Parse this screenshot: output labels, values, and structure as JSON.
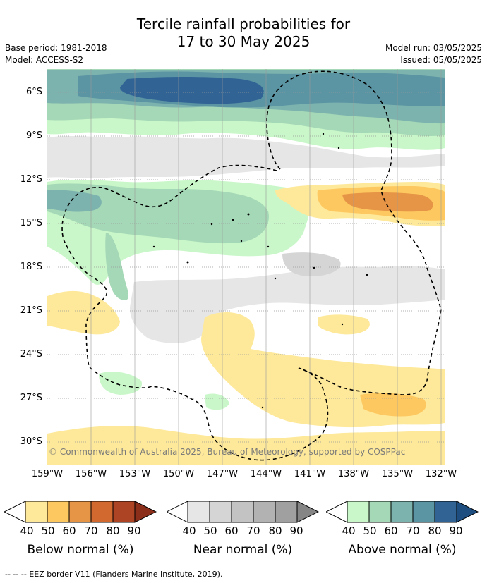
{
  "title_line1": "Tercile rainfall probabilities for",
  "title_line2": "17 to 30 May 2025",
  "base_period": "Base period: 1981-2018",
  "model": "Model: ACCESS-S2",
  "model_run": "Model run: 03/05/2025",
  "issued": "Issued: 05/05/2025",
  "credit": "© Commonwealth of Australia 2025, Bureau of Meteorology, supported by COSPPac",
  "footer": "--  --  -- EEZ border V11 (Flanders Marine Institute, 2019).",
  "lat_labels": [
    "6°S",
    "9°S",
    "12°S",
    "15°S",
    "18°S",
    "21°S",
    "24°S",
    "27°S",
    "30°S"
  ],
  "lon_labels": [
    "159°W",
    "156°W",
    "153°W",
    "150°W",
    "147°W",
    "144°W",
    "141°W",
    "138°W",
    "135°W",
    "132°W"
  ],
  "colorbars": [
    {
      "title": "Below normal (%)",
      "ticks": [
        "40",
        "50",
        "60",
        "70",
        "80",
        "90"
      ],
      "colors": [
        "#fee99a",
        "#fdc860",
        "#e69446",
        "#d2692f",
        "#ad4524",
        "#8c2f1a"
      ],
      "under": "#ffffff"
    },
    {
      "title": "Near normal (%)",
      "ticks": [
        "40",
        "50",
        "60",
        "70",
        "80",
        "90"
      ],
      "colors": [
        "#e6e6e6",
        "#d5d5d5",
        "#c3c3c3",
        "#b2b2b2",
        "#a0a0a0",
        "#858585"
      ],
      "under": "#ffffff"
    },
    {
      "title": "Above normal (%)",
      "ticks": [
        "40",
        "50",
        "60",
        "70",
        "80",
        "90"
      ],
      "colors": [
        "#c9f7c9",
        "#a5d8b6",
        "#7db3ae",
        "#5b94a3",
        "#316495",
        "#1e4d80"
      ],
      "under": "#ffffff"
    }
  ]
}
